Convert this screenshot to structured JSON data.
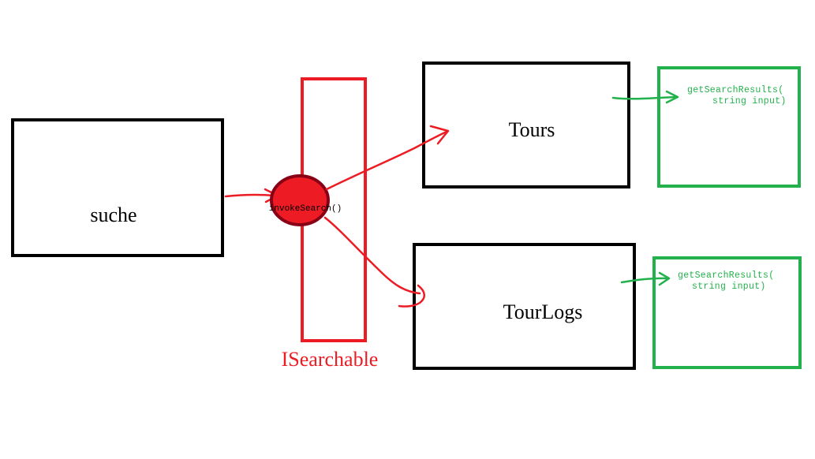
{
  "nodes": {
    "suche": {
      "label": "suche"
    },
    "isearchable": {
      "label": "ISearchable"
    },
    "invoke": {
      "label": "invokeSearch()"
    },
    "tours": {
      "label": "Tours"
    },
    "tourlogs": {
      "label": "TourLogs"
    },
    "tours_method": {
      "line1": "getSearchResults(",
      "line2": "string input)"
    },
    "tourlogs_method": {
      "line1": "getSearchResults(",
      "line2": "string input)"
    }
  },
  "colors": {
    "interface": "#ed1c24",
    "invoke_fill": "#ed1c24",
    "invoke_stroke": "#880015",
    "method_box": "#22b14c",
    "class_box": "#000000",
    "arrow_red": "#ed1c24",
    "arrow_green": "#22b14c"
  }
}
